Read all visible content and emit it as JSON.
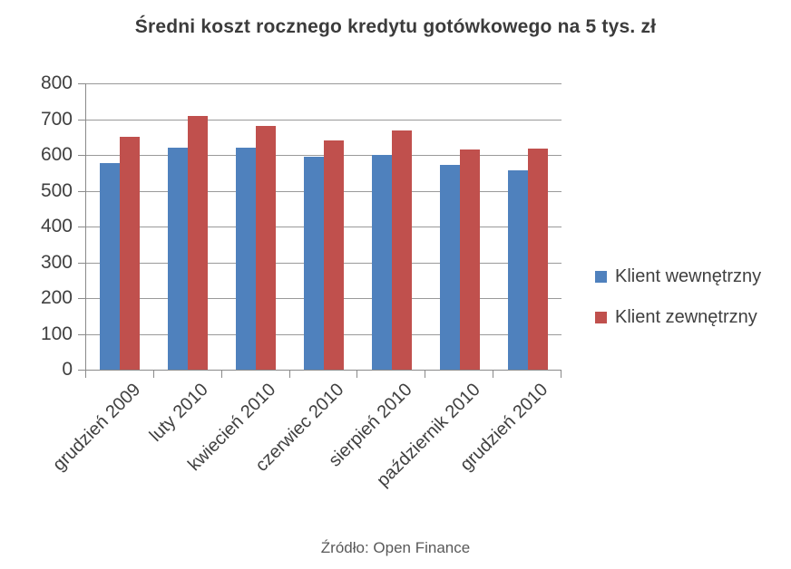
{
  "chart_data": {
    "type": "bar",
    "title": "Średni koszt rocznego kredytu gotówkowego na 5 tys. zł",
    "categories": [
      "grudzień 2009",
      "luty 2010",
      "kwiecień 2010",
      "czerwiec 2010",
      "sierpień 2010",
      "październik 2010",
      "grudzień 2010"
    ],
    "series": [
      {
        "name": "Klient wewnętrzny",
        "color": "#4F81BD",
        "values": [
          578,
          620,
          620,
          595,
          600,
          571,
          558
        ]
      },
      {
        "name": "Klient zewnętrzny",
        "color": "#C0504D",
        "values": [
          650,
          710,
          680,
          640,
          668,
          616,
          617
        ]
      }
    ],
    "xlabel": "",
    "ylabel": "",
    "ylim": [
      0,
      800
    ],
    "yticks": [
      0,
      100,
      200,
      300,
      400,
      500,
      600,
      700,
      800
    ],
    "grid": true,
    "legend_position": "right"
  },
  "source_label": "Źródło: Open Finance",
  "colors": {
    "grid": "#9a9a9a",
    "axis": "#8a8a8a",
    "title_text": "#3b3b3b",
    "axis_text": "#404040",
    "source_text": "#595959"
  }
}
